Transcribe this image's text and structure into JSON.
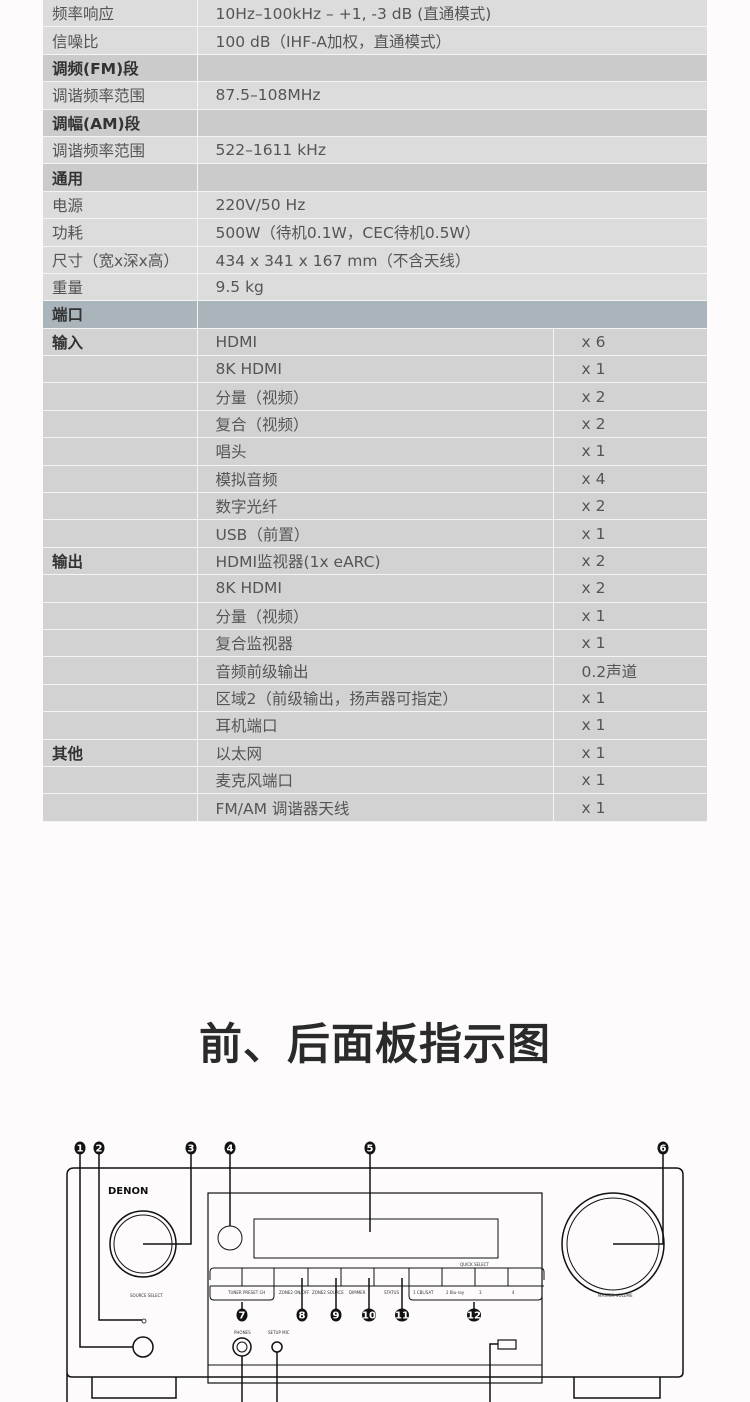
{
  "spec_rows": [
    {
      "type": "plain",
      "label": "频率响应",
      "value": "10Hz–100kHz – +1, -3 dB (直通模式)"
    },
    {
      "type": "plain",
      "label": "信噪比",
      "value": "100 dB（IHF-A加权，直通模式）"
    },
    {
      "type": "section",
      "label": "调频(FM)段",
      "value": ""
    },
    {
      "type": "plain",
      "label": "调谐频率范围",
      "value": "87.5–108MHz"
    },
    {
      "type": "section",
      "label": "调幅(AM)段",
      "value": ""
    },
    {
      "type": "plain",
      "label": "调谐频率范围",
      "value": "522–1611 kHz"
    },
    {
      "type": "section",
      "label": "通用",
      "value": ""
    },
    {
      "type": "plain",
      "label": "电源",
      "value": "220V/50 Hz"
    },
    {
      "type": "plain",
      "label": "功耗",
      "value": "500W（待机0.1W，CEC待机0.5W）"
    },
    {
      "type": "plain",
      "label": "尺寸（宽x深x高）",
      "value": "434 x 341 x 167 mm（不含天线）"
    },
    {
      "type": "plain",
      "label": "重量",
      "value": "9.5 kg"
    }
  ],
  "ports_header": "端口",
  "port_rows": [
    {
      "group": "输入",
      "name": "HDMI",
      "count": "x 6"
    },
    {
      "group": "",
      "name": "8K HDMI",
      "count": "x 1"
    },
    {
      "group": "",
      "name": "分量（视频）",
      "count": "x 2"
    },
    {
      "group": "",
      "name": "复合（视频）",
      "count": "x 2"
    },
    {
      "group": "",
      "name": "唱头",
      "count": "x 1"
    },
    {
      "group": "",
      "name": "模拟音频",
      "count": "x 4"
    },
    {
      "group": "",
      "name": "数字光纤",
      "count": "x 2"
    },
    {
      "group": "",
      "name": "USB（前置）",
      "count": "x 1"
    },
    {
      "group": "输出",
      "name": "HDMI监视器(1x eARC)",
      "count": "x 2"
    },
    {
      "group": "",
      "name": "8K HDMI",
      "count": "x 2"
    },
    {
      "group": "",
      "name": "分量（视频）",
      "count": "x 1"
    },
    {
      "group": "",
      "name": "复合监视器",
      "count": "x 1"
    },
    {
      "group": "",
      "name": "音频前级输出",
      "count": "0.2声道"
    },
    {
      "group": "",
      "name": "区域2（前级输出，扬声器可指定）",
      "count": "x 1"
    },
    {
      "group": "",
      "name": "耳机端口",
      "count": "x 1"
    },
    {
      "group": "其他",
      "name": "以太网",
      "count": "x 1"
    },
    {
      "group": "",
      "name": "麦克风端口",
      "count": "x 1"
    },
    {
      "group": "",
      "name": "FM/AM 调谐器天线",
      "count": "x 1"
    }
  ],
  "section_title": "前、后面板指示图",
  "diagram": {
    "brand": "DENON",
    "callouts": [
      "1",
      "2",
      "3",
      "4",
      "5",
      "6",
      "7",
      "8",
      "9",
      "10",
      "11",
      "12"
    ],
    "labels": {
      "source_select": "SOURCE SELECT",
      "master_volume": "MASTER VOLUME",
      "tuner_preset": "TUNER PRESET CH",
      "zone2_onoff": "ZONE2 ON/OFF",
      "zone2_source": "ZONE2 SOURCE",
      "dimmer": "DIMMER",
      "status": "STATUS",
      "quick_select": "QUICK SELECT",
      "qs1": "1 CBL/SAT",
      "qs2": "2 Blu-ray",
      "qs3": "3",
      "qs4": "4",
      "phones": "PHONES",
      "setup_mic": "SETUP MIC"
    }
  }
}
